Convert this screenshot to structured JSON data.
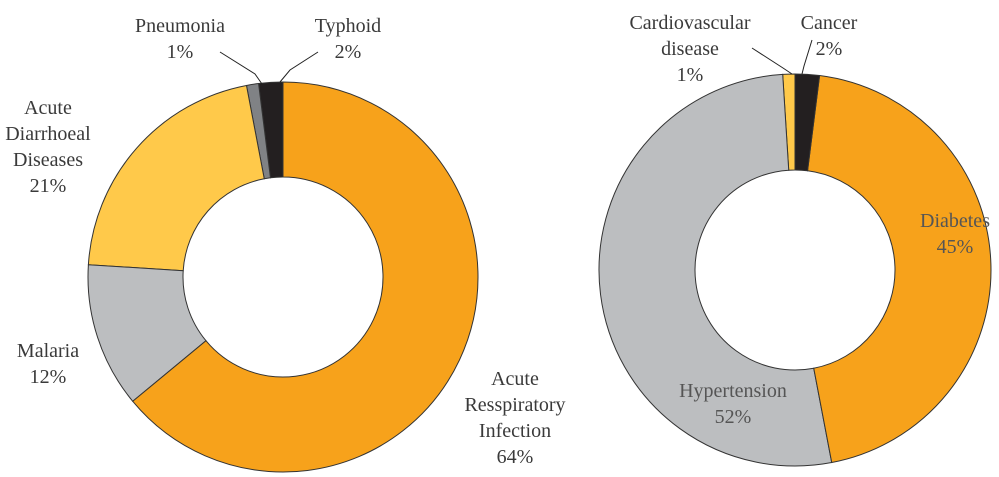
{
  "chart_data": [
    {
      "type": "pie",
      "categories": [
        "Acute Resspiratory Infection",
        "Malaria",
        "Acute Diarrhoeal Diseases",
        "Pneumonia",
        "Typhoid"
      ],
      "values": [
        64,
        12,
        21,
        1,
        2
      ],
      "value_labels": [
        "64%",
        "12%",
        "21%",
        "1%",
        "2%"
      ],
      "colors": [
        "#f7a21b",
        "#bcbec0",
        "#ffc94a",
        "#808285",
        "#231f20"
      ]
    },
    {
      "type": "pie",
      "categories": [
        "Diabetes",
        "Hypertension",
        "Cardiovascular disease",
        "Cancer"
      ],
      "values": [
        45,
        52,
        1,
        2
      ],
      "value_labels": [
        "45%",
        "52%",
        "1%",
        "2%"
      ],
      "colors": [
        "#f7a21b",
        "#bcbec0",
        "#ffc94a",
        "#231f20"
      ]
    }
  ]
}
